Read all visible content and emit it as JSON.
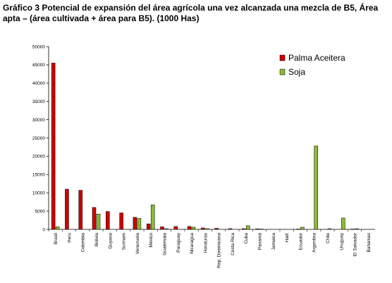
{
  "chart_data": {
    "type": "bar",
    "title": "Gráfico 3 Potencial de expansión del área agrícola una vez alcanzada una mezcla de B5, Área apta – (área cultivada + área para B5). (1000 Has)",
    "categories": [
      "Brasil",
      "Perú",
      "Colombia",
      "Bolivia",
      "Guyana",
      "Surinam",
      "Venezuela",
      "México",
      "Guatemala",
      "Paraguay",
      "Nicaragua",
      "Honduras",
      "Rep. Dominicana",
      "Costa Rica",
      "Cuba",
      "Panamá",
      "Jamaica",
      "Haití",
      "Ecuador",
      "Argentina",
      "Chile",
      "Uruguay",
      "El Salvador",
      "Bahamas"
    ],
    "series": [
      {
        "name": "Palma Aceitera",
        "color": "#cc0000",
        "values": [
          45500,
          11000,
          10700,
          6000,
          4900,
          4500,
          3300,
          1500,
          700,
          800,
          800,
          400,
          300,
          200,
          200,
          150,
          0,
          0,
          100,
          0,
          0,
          0,
          100,
          0
        ]
      },
      {
        "name": "Soja",
        "color": "#88bb33",
        "values": [
          700,
          0,
          0,
          4200,
          0,
          0,
          3000,
          6700,
          200,
          0,
          600,
          200,
          0,
          0,
          1000,
          100,
          0,
          0,
          600,
          22800,
          200,
          3100,
          200,
          0
        ]
      }
    ],
    "yticks": [
      "0",
      "5000",
      "10000",
      "15000",
      "20000",
      "25000",
      "30000",
      "35000",
      "40000",
      "45000",
      "50000"
    ],
    "ylim": [
      0,
      50000
    ],
    "grid": false,
    "legend_position": "top-right",
    "xlabel": "",
    "ylabel": ""
  }
}
